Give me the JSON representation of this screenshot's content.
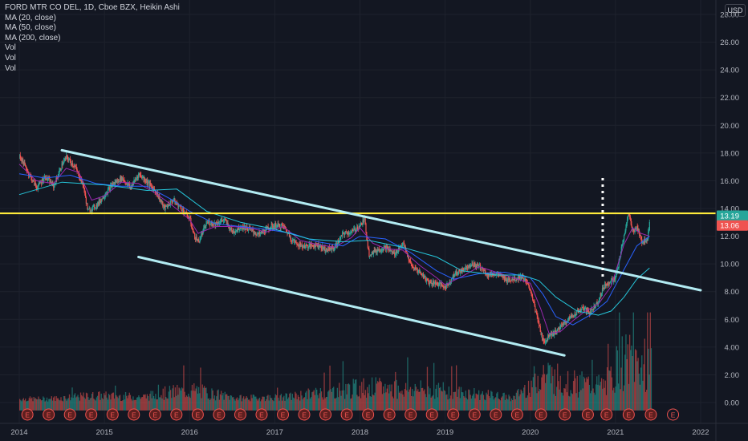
{
  "header": {
    "symbol_line": "FORD MTR CO DEL, 1D, Cboe BZX, Heikin Ashi",
    "indicators": [
      "MA (20, close)",
      "MA (50, close)",
      "MA (200, close)",
      "Vol",
      "Vol",
      "Vol"
    ],
    "currency": "USD"
  },
  "chart_data": {
    "type": "line",
    "title": "FORD MTR CO DEL, 1D, Cboe BZX, Heikin Ashi",
    "x_ticks": [
      "2014",
      "2015",
      "2016",
      "2017",
      "2018",
      "2019",
      "2020",
      "2021",
      "2022"
    ],
    "y_ticks": [
      "28.00",
      "26.00",
      "24.00",
      "22.00",
      "20.00",
      "18.00",
      "16.00",
      "14.00",
      "12.00",
      "10.00",
      "8.00",
      "6.00",
      "4.00",
      "2.00",
      "0.00"
    ],
    "ylim": [
      -0.9,
      29
    ],
    "xlim": [
      2014.0,
      2022.45
    ],
    "price_labels": [
      {
        "text": "13.19",
        "value": 13.19,
        "color": "#26a69a"
      },
      {
        "text": "13.06",
        "value": 13.06,
        "color": "#ef5350"
      }
    ],
    "horizontal_level": {
      "value": 13.65,
      "color": "#ffeb3b"
    },
    "trendlines": [
      {
        "name": "upper",
        "points": [
          [
            2014.5,
            18.2
          ],
          [
            2022.0,
            8.1
          ]
        ],
        "color": "#b2ebf2"
      },
      {
        "name": "lower",
        "points": [
          [
            2015.4,
            10.5
          ],
          [
            2020.4,
            3.4
          ]
        ],
        "color": "#b2ebf2"
      }
    ],
    "vertical_marker": {
      "x": 2020.85,
      "from": 9.0,
      "to": 16.2
    },
    "price_series": {
      "x": [
        2014.0,
        2014.1,
        2014.2,
        2014.3,
        2014.4,
        2014.5,
        2014.55,
        2014.65,
        2014.75,
        2014.8,
        2014.9,
        2015.0,
        2015.1,
        2015.2,
        2015.3,
        2015.4,
        2015.5,
        2015.6,
        2015.7,
        2015.8,
        2015.9,
        2016.0,
        2016.05,
        2016.1,
        2016.2,
        2016.3,
        2016.4,
        2016.5,
        2016.6,
        2016.7,
        2016.8,
        2016.9,
        2017.0,
        2017.1,
        2017.2,
        2017.3,
        2017.4,
        2017.5,
        2017.6,
        2017.7,
        2017.8,
        2017.9,
        2018.0,
        2018.05,
        2018.1,
        2018.2,
        2018.3,
        2018.4,
        2018.5,
        2018.6,
        2018.7,
        2018.8,
        2018.9,
        2019.0,
        2019.1,
        2019.2,
        2019.3,
        2019.4,
        2019.5,
        2019.6,
        2019.7,
        2019.8,
        2019.9,
        2020.0,
        2020.08,
        2020.15,
        2020.22,
        2020.3,
        2020.4,
        2020.5,
        2020.6,
        2020.7,
        2020.8,
        2020.85,
        2020.9,
        2021.0,
        2021.1,
        2021.15,
        2021.2,
        2021.25,
        2021.3,
        2021.37,
        2021.4
      ],
      "values": [
        17.8,
        16.6,
        15.5,
        16.3,
        15.6,
        17.2,
        17.7,
        17.0,
        15.6,
        13.8,
        14.2,
        15.0,
        15.8,
        16.2,
        15.5,
        16.5,
        15.9,
        15.2,
        14.0,
        14.6,
        14.0,
        13.2,
        12.0,
        11.6,
        13.0,
        12.9,
        13.2,
        12.3,
        12.7,
        12.5,
        12.1,
        12.5,
        12.8,
        12.7,
        11.7,
        11.3,
        11.3,
        11.4,
        11.0,
        11.2,
        12.2,
        12.3,
        12.8,
        13.2,
        10.7,
        11.0,
        11.2,
        10.7,
        11.5,
        9.8,
        9.4,
        8.7,
        8.6,
        8.3,
        9.2,
        9.6,
        10.0,
        9.8,
        9.2,
        9.3,
        8.9,
        8.9,
        9.1,
        8.1,
        6.0,
        4.3,
        4.9,
        5.1,
        5.8,
        6.3,
        6.8,
        6.5,
        7.4,
        8.3,
        8.6,
        9.0,
        12.2,
        13.6,
        12.4,
        12.6,
        11.6,
        11.8,
        13.1
      ]
    },
    "ma_series": [
      {
        "name": "MA (20, close)",
        "color": "#9c27b0",
        "x": [
          2014.0,
          2014.2,
          2014.4,
          2014.55,
          2014.7,
          2014.85,
          2015.0,
          2015.2,
          2015.4,
          2015.6,
          2015.8,
          2016.0,
          2016.1,
          2016.3,
          2016.5,
          2016.7,
          2016.9,
          2017.1,
          2017.3,
          2017.5,
          2017.7,
          2017.9,
          2018.0,
          2018.15,
          2018.3,
          2018.5,
          2018.7,
          2018.9,
          2019.0,
          2019.2,
          2019.4,
          2019.6,
          2019.8,
          2020.0,
          2020.12,
          2020.22,
          2020.35,
          2020.5,
          2020.65,
          2020.8,
          2020.95,
          2021.1,
          2021.2,
          2021.3,
          2021.4
        ],
        "values": [
          17.2,
          16.0,
          15.8,
          16.9,
          16.6,
          14.6,
          14.9,
          15.9,
          15.8,
          15.1,
          14.2,
          13.2,
          12.2,
          12.7,
          12.7,
          12.6,
          12.3,
          12.7,
          11.7,
          11.4,
          11.2,
          11.9,
          12.6,
          11.5,
          11.1,
          11.0,
          9.9,
          9.0,
          8.5,
          9.1,
          9.8,
          9.4,
          9.0,
          8.6,
          6.8,
          5.0,
          5.1,
          5.9,
          6.6,
          7.1,
          8.4,
          11.4,
          12.6,
          12.2,
          12.0
        ]
      },
      {
        "name": "MA (50, close)",
        "color": "#2962ff",
        "x": [
          2014.0,
          2014.3,
          2014.6,
          2014.9,
          2015.2,
          2015.5,
          2015.8,
          2016.0,
          2016.3,
          2016.6,
          2016.9,
          2017.2,
          2017.5,
          2017.8,
          2018.0,
          2018.3,
          2018.6,
          2018.9,
          2019.1,
          2019.4,
          2019.7,
          2020.0,
          2020.15,
          2020.3,
          2020.5,
          2020.7,
          2020.9,
          2021.1,
          2021.25,
          2021.4
        ],
        "values": [
          16.5,
          16.2,
          16.4,
          15.8,
          15.6,
          15.6,
          14.6,
          13.8,
          12.9,
          12.7,
          12.5,
          12.2,
          11.6,
          11.3,
          12.0,
          11.8,
          10.8,
          9.5,
          8.9,
          9.3,
          9.4,
          9.0,
          7.8,
          6.2,
          5.6,
          6.3,
          7.3,
          9.6,
          11.3,
          12.0
        ]
      },
      {
        "name": "MA (200, close)",
        "color": "#26c6da",
        "x": [
          2014.0,
          2014.5,
          2015.0,
          2015.5,
          2015.85,
          2016.2,
          2016.6,
          2017.0,
          2017.4,
          2017.8,
          2018.1,
          2018.5,
          2018.9,
          2019.2,
          2019.6,
          2019.9,
          2020.1,
          2020.3,
          2020.55,
          2020.8,
          2020.95,
          2021.1,
          2021.25,
          2021.4
        ],
        "values": [
          15.0,
          15.9,
          15.7,
          15.3,
          15.4,
          13.8,
          13.0,
          12.5,
          11.8,
          11.6,
          11.7,
          11.2,
          10.5,
          9.5,
          9.2,
          9.2,
          8.8,
          7.6,
          6.6,
          6.3,
          6.6,
          7.6,
          8.9,
          9.7
        ]
      }
    ],
    "volume_levels": [
      {
        "x": 2014.3,
        "value": 0.45
      },
      {
        "x": 2014.9,
        "value": 0.85
      },
      {
        "x": 2015.45,
        "value": 0.7
      },
      {
        "x": 2015.75,
        "value": 1.25
      },
      {
        "x": 2016.05,
        "value": 1.5
      },
      {
        "x": 2016.55,
        "value": 0.55
      },
      {
        "x": 2017.1,
        "value": 0.65
      },
      {
        "x": 2018.05,
        "value": 1.9
      },
      {
        "x": 2018.95,
        "value": 1.5
      },
      {
        "x": 2019.8,
        "value": 0.6
      },
      {
        "x": 2020.15,
        "value": 3.6
      },
      {
        "x": 2020.45,
        "value": 2.4
      },
      {
        "x": 2020.9,
        "value": 2.0
      },
      {
        "x": 2021.05,
        "value": 5.2
      },
      {
        "x": 2021.35,
        "value": 4.7
      }
    ],
    "earnings_markers": {
      "label": "E",
      "x": [
        2014.02,
        2014.27,
        2014.52,
        2014.77,
        2015.02,
        2015.27,
        2015.52,
        2015.77,
        2016.02,
        2016.27,
        2016.52,
        2016.77,
        2017.02,
        2017.27,
        2017.52,
        2017.77,
        2018.02,
        2018.27,
        2018.52,
        2018.77,
        2019.02,
        2019.27,
        2019.52,
        2019.77,
        2020.05,
        2020.33,
        2020.6,
        2020.82,
        2021.08,
        2021.34,
        2021.6
      ]
    }
  }
}
